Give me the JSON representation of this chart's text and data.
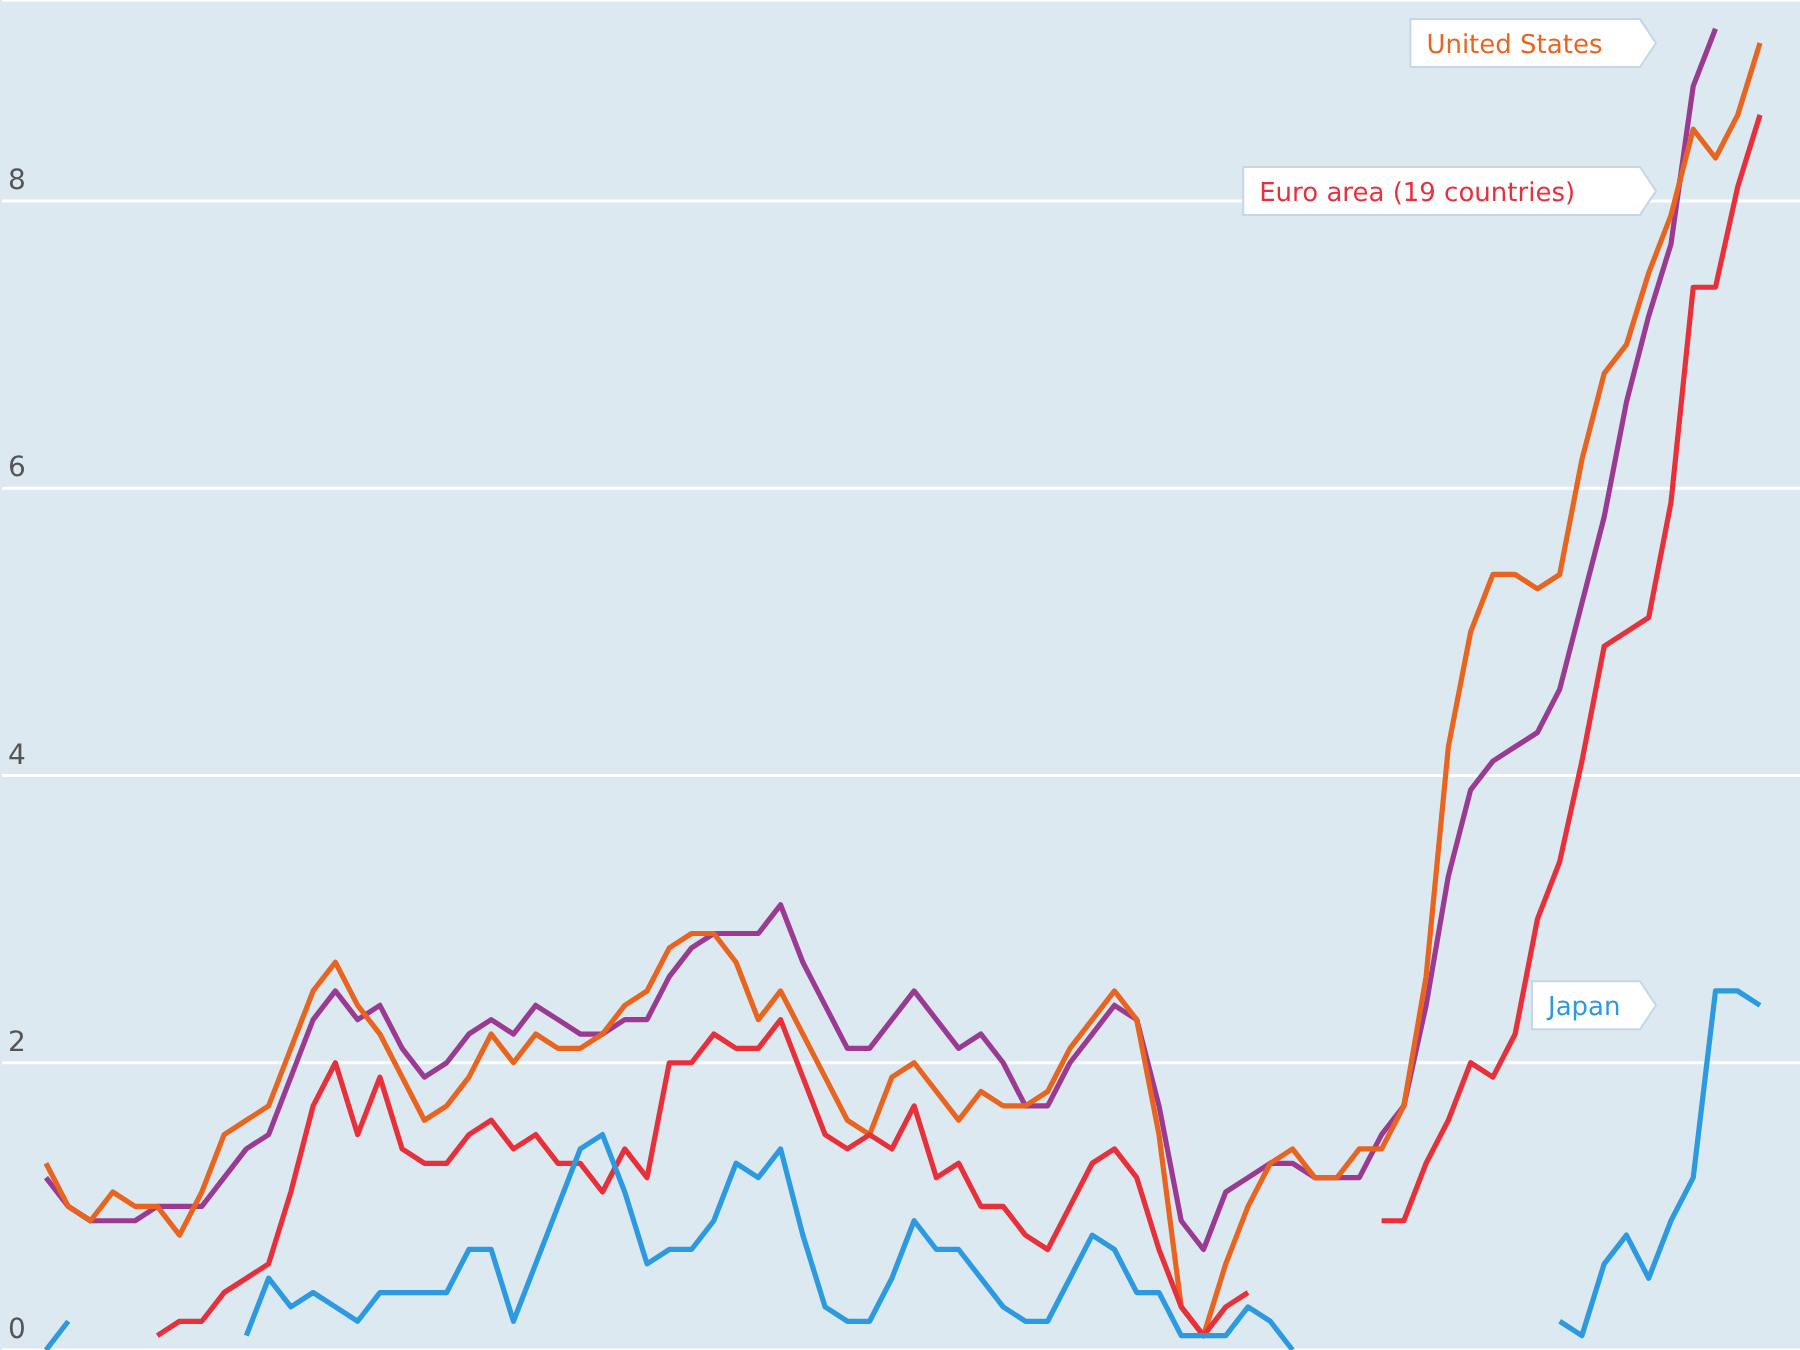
{
  "chart_data": {
    "type": "line",
    "categories": [
      null,
      null,
      null,
      null,
      null,
      null,
      null,
      null,
      null,
      null,
      null,
      null,
      null,
      null,
      null,
      null,
      null,
      null,
      null,
      null,
      null,
      null,
      null,
      null,
      null,
      null,
      null,
      null,
      null,
      null,
      null,
      null,
      null,
      null,
      null,
      null,
      null,
      null,
      null,
      null,
      null,
      null,
      null,
      null,
      null,
      null,
      null,
      null,
      null,
      null,
      null,
      null,
      null,
      null,
      null,
      null,
      null,
      null,
      null,
      null,
      null,
      null,
      null,
      null,
      null,
      null,
      null,
      null,
      null,
      null,
      null,
      null,
      null,
      null,
      null,
      null,
      null,
      null
    ],
    "series": [
      {
        "color": "#9b3a93",
        "values": [
          1.2,
          1.0,
          0.9,
          0.9,
          0.9,
          1.0,
          1.0,
          1.0,
          1.2,
          1.4,
          1.5,
          1.9,
          2.3,
          2.5,
          2.3,
          2.4,
          2.1,
          1.9,
          2.0,
          2.2,
          2.3,
          2.2,
          2.4,
          2.3,
          2.2,
          2.2,
          2.3,
          2.3,
          2.6,
          2.8,
          2.9,
          2.9,
          2.9,
          3.1,
          2.7,
          2.4,
          2.1,
          2.1,
          2.3,
          2.5,
          2.3,
          2.1,
          2.2,
          2.0,
          1.7,
          1.7,
          2.0,
          2.2,
          2.4,
          2.3,
          1.7,
          0.9,
          0.7,
          1.1,
          1.2,
          1.3,
          1.3,
          1.2,
          1.2,
          1.2,
          1.5,
          1.7,
          2.4,
          3.3,
          3.9,
          4.1,
          4.2,
          4.3,
          4.6,
          5.2,
          5.8,
          6.6,
          7.2,
          7.7,
          8.8,
          9.2,
          null,
          null
        ]
      },
      {
        "name": "United States",
        "color": "#e8641f",
        "values": [
          1.3,
          1.0,
          0.9,
          1.1,
          1.0,
          1.0,
          0.8,
          1.1,
          1.5,
          1.6,
          1.7,
          2.1,
          2.5,
          2.7,
          2.4,
          2.2,
          1.9,
          1.6,
          1.7,
          1.9,
          2.2,
          2.0,
          2.2,
          2.1,
          2.1,
          2.2,
          2.4,
          2.5,
          2.8,
          2.9,
          2.9,
          2.7,
          2.3,
          2.5,
          2.2,
          1.9,
          1.6,
          1.5,
          1.9,
          2.0,
          1.8,
          1.6,
          1.8,
          1.7,
          1.7,
          1.8,
          2.1,
          2.3,
          2.5,
          2.3,
          1.5,
          0.3,
          0.1,
          0.6,
          1.0,
          1.3,
          1.4,
          1.2,
          1.2,
          1.4,
          1.4,
          1.7,
          2.6,
          4.2,
          5.0,
          5.4,
          5.4,
          5.3,
          5.4,
          6.2,
          6.8,
          7.0,
          7.5,
          7.9,
          8.5,
          8.3,
          8.6,
          9.1
        ]
      },
      {
        "name": "Euro area (19 countries)",
        "color": "#e8303a",
        "values": [
          null,
          null,
          null,
          null,
          null,
          0.1,
          0.2,
          0.2,
          0.4,
          0.5,
          0.6,
          1.1,
          1.7,
          2.0,
          1.5,
          1.9,
          1.4,
          1.3,
          1.3,
          1.5,
          1.6,
          1.4,
          1.5,
          1.3,
          1.3,
          1.1,
          1.4,
          1.2,
          2.0,
          2.0,
          2.2,
          2.1,
          2.1,
          2.3,
          1.9,
          1.5,
          1.4,
          1.5,
          1.4,
          1.7,
          1.2,
          1.3,
          1.0,
          1.0,
          0.8,
          0.7,
          1.0,
          1.3,
          1.4,
          1.2,
          0.7,
          0.3,
          0.1,
          0.3,
          0.4,
          null,
          null,
          null,
          null,
          null,
          0.9,
          0.9,
          1.3,
          1.6,
          2.0,
          1.9,
          2.2,
          3.0,
          3.4,
          4.1,
          4.9,
          5.0,
          5.1,
          5.9,
          7.4,
          7.4,
          8.1,
          8.6
        ]
      },
      {
        "name": "Japan",
        "color": "#2b9ae0",
        "values": [
          0.0,
          0.2,
          null,
          null,
          null,
          null,
          null,
          null,
          null,
          0.1,
          0.5,
          0.3,
          0.4,
          0.3,
          0.2,
          0.4,
          0.4,
          0.4,
          0.4,
          0.7,
          0.7,
          0.2,
          0.6,
          1.0,
          1.4,
          1.5,
          1.1,
          0.6,
          0.7,
          0.7,
          0.9,
          1.3,
          1.2,
          1.4,
          0.8,
          0.3,
          0.2,
          0.2,
          0.5,
          0.9,
          0.7,
          0.7,
          0.5,
          0.3,
          0.2,
          0.2,
          0.5,
          0.8,
          0.7,
          0.4,
          0.4,
          0.1,
          0.1,
          0.1,
          0.3,
          0.2,
          0.0,
          null,
          null,
          null,
          null,
          null,
          null,
          null,
          null,
          null,
          null,
          null,
          0.2,
          0.1,
          0.6,
          0.8,
          0.5,
          0.9,
          1.2,
          2.5,
          2.5,
          2.4
        ]
      }
    ],
    "ylim": [
      0,
      9.4
    ],
    "yticks": [
      0,
      2,
      4,
      6,
      8
    ],
    "grid": "y",
    "marker": "none",
    "line_style": "solid"
  }
}
